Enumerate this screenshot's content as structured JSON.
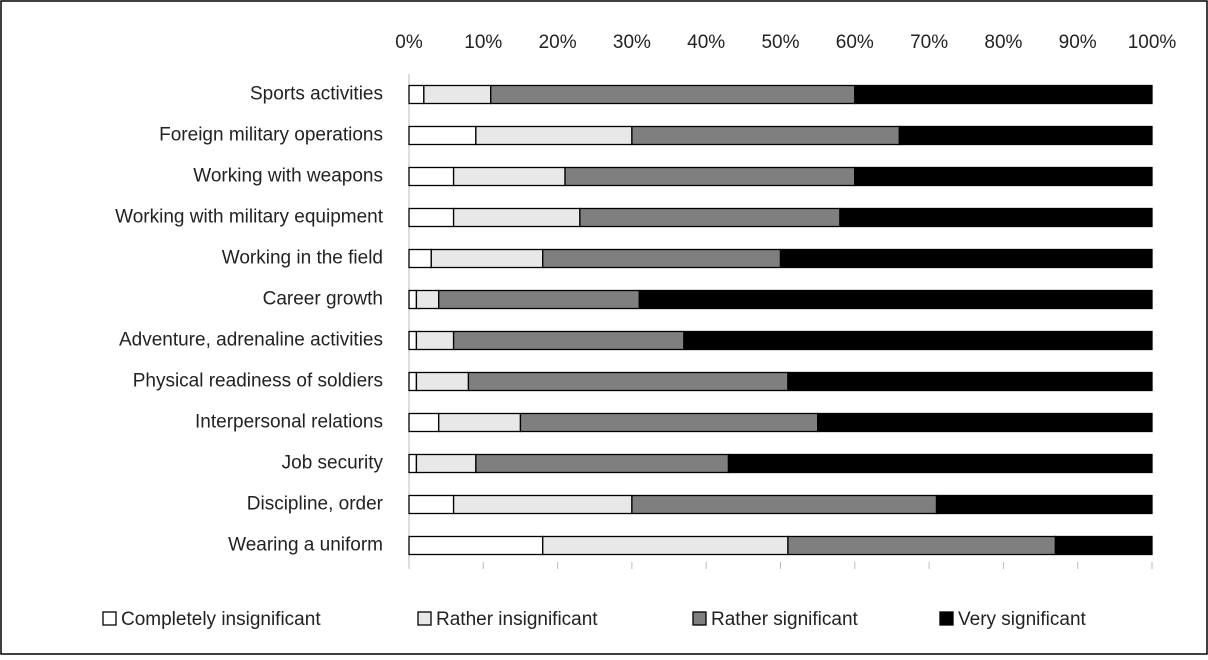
{
  "chart_data": {
    "type": "stacked_barh",
    "categories": [
      "Sports activities",
      "Foreign military operations",
      "Working with weapons",
      "Working with military equipment",
      "Working in the field",
      "Career growth",
      "Adventure, adrenaline activities",
      "Physical readiness of soldiers",
      "Interpersonal relations",
      "Job security",
      "Discipline, order",
      "Wearing a uniform"
    ],
    "series": [
      {
        "name": "Completely insignificant",
        "color": "#ffffff",
        "values": [
          2,
          9,
          6,
          6,
          3,
          1,
          1,
          1,
          4,
          1,
          6,
          18
        ]
      },
      {
        "name": "Rather insignificant",
        "color": "#e8e8e8",
        "values": [
          9,
          21,
          15,
          17,
          15,
          3,
          5,
          7,
          11,
          8,
          24,
          33
        ]
      },
      {
        "name": "Rather significant",
        "color": "#7f7f7f",
        "values": [
          49,
          36,
          39,
          35,
          32,
          27,
          31,
          43,
          40,
          34,
          41,
          36
        ]
      },
      {
        "name": "Very significant",
        "color": "#000000",
        "values": [
          40,
          34,
          40,
          42,
          50,
          69,
          63,
          49,
          45,
          57,
          29,
          13
        ]
      }
    ],
    "xlim": [
      0,
      100
    ],
    "xticks": [
      {
        "value": 0,
        "label": "0%"
      },
      {
        "value": 10,
        "label": "10%"
      },
      {
        "value": 20,
        "label": "20%"
      },
      {
        "value": 30,
        "label": "30%"
      },
      {
        "value": 40,
        "label": "40%"
      },
      {
        "value": 50,
        "label": "50%"
      },
      {
        "value": 60,
        "label": "60%"
      },
      {
        "value": 70,
        "label": "70%"
      },
      {
        "value": 80,
        "label": "80%"
      },
      {
        "value": 90,
        "label": "90%"
      },
      {
        "value": 100,
        "label": "100%"
      }
    ],
    "legend": "bottom"
  }
}
